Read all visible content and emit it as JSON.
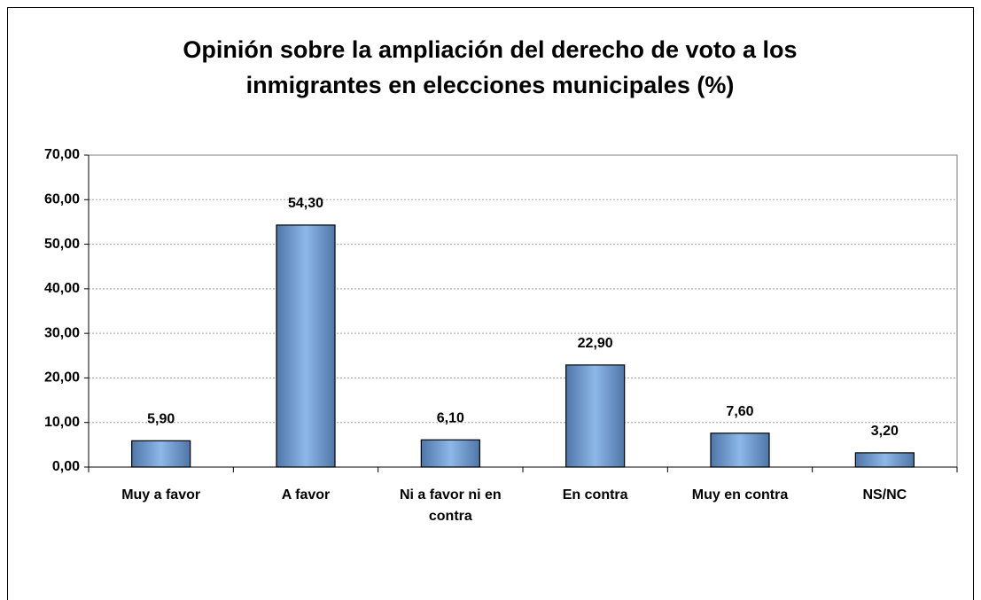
{
  "chart_data": {
    "type": "bar",
    "title": "Opinión sobre la ampliación del derecho de voto a los inmigrantes en elecciones municipales (%)",
    "categories": [
      "Muy a favor",
      "A favor",
      "Ni a favor ni en contra",
      "En contra",
      "Muy en contra",
      "NS/NC"
    ],
    "values": [
      5.9,
      54.3,
      6.1,
      22.9,
      7.6,
      3.2
    ],
    "value_labels": [
      "5,90",
      "54,30",
      "6,10",
      "22,90",
      "7,60",
      "3,20"
    ],
    "color": "#8db8e8",
    "ylim": [
      0,
      70
    ],
    "yticks": [
      {
        "value": 0,
        "label": "0,00"
      },
      {
        "value": 10,
        "label": "10,00"
      },
      {
        "value": 20,
        "label": "20,00"
      },
      {
        "value": 30,
        "label": "30,00"
      },
      {
        "value": 40,
        "label": "40,00"
      },
      {
        "value": 50,
        "label": "50,00"
      },
      {
        "value": 60,
        "label": "60,00"
      },
      {
        "value": 70,
        "label": "70,00"
      }
    ],
    "grid": true
  }
}
